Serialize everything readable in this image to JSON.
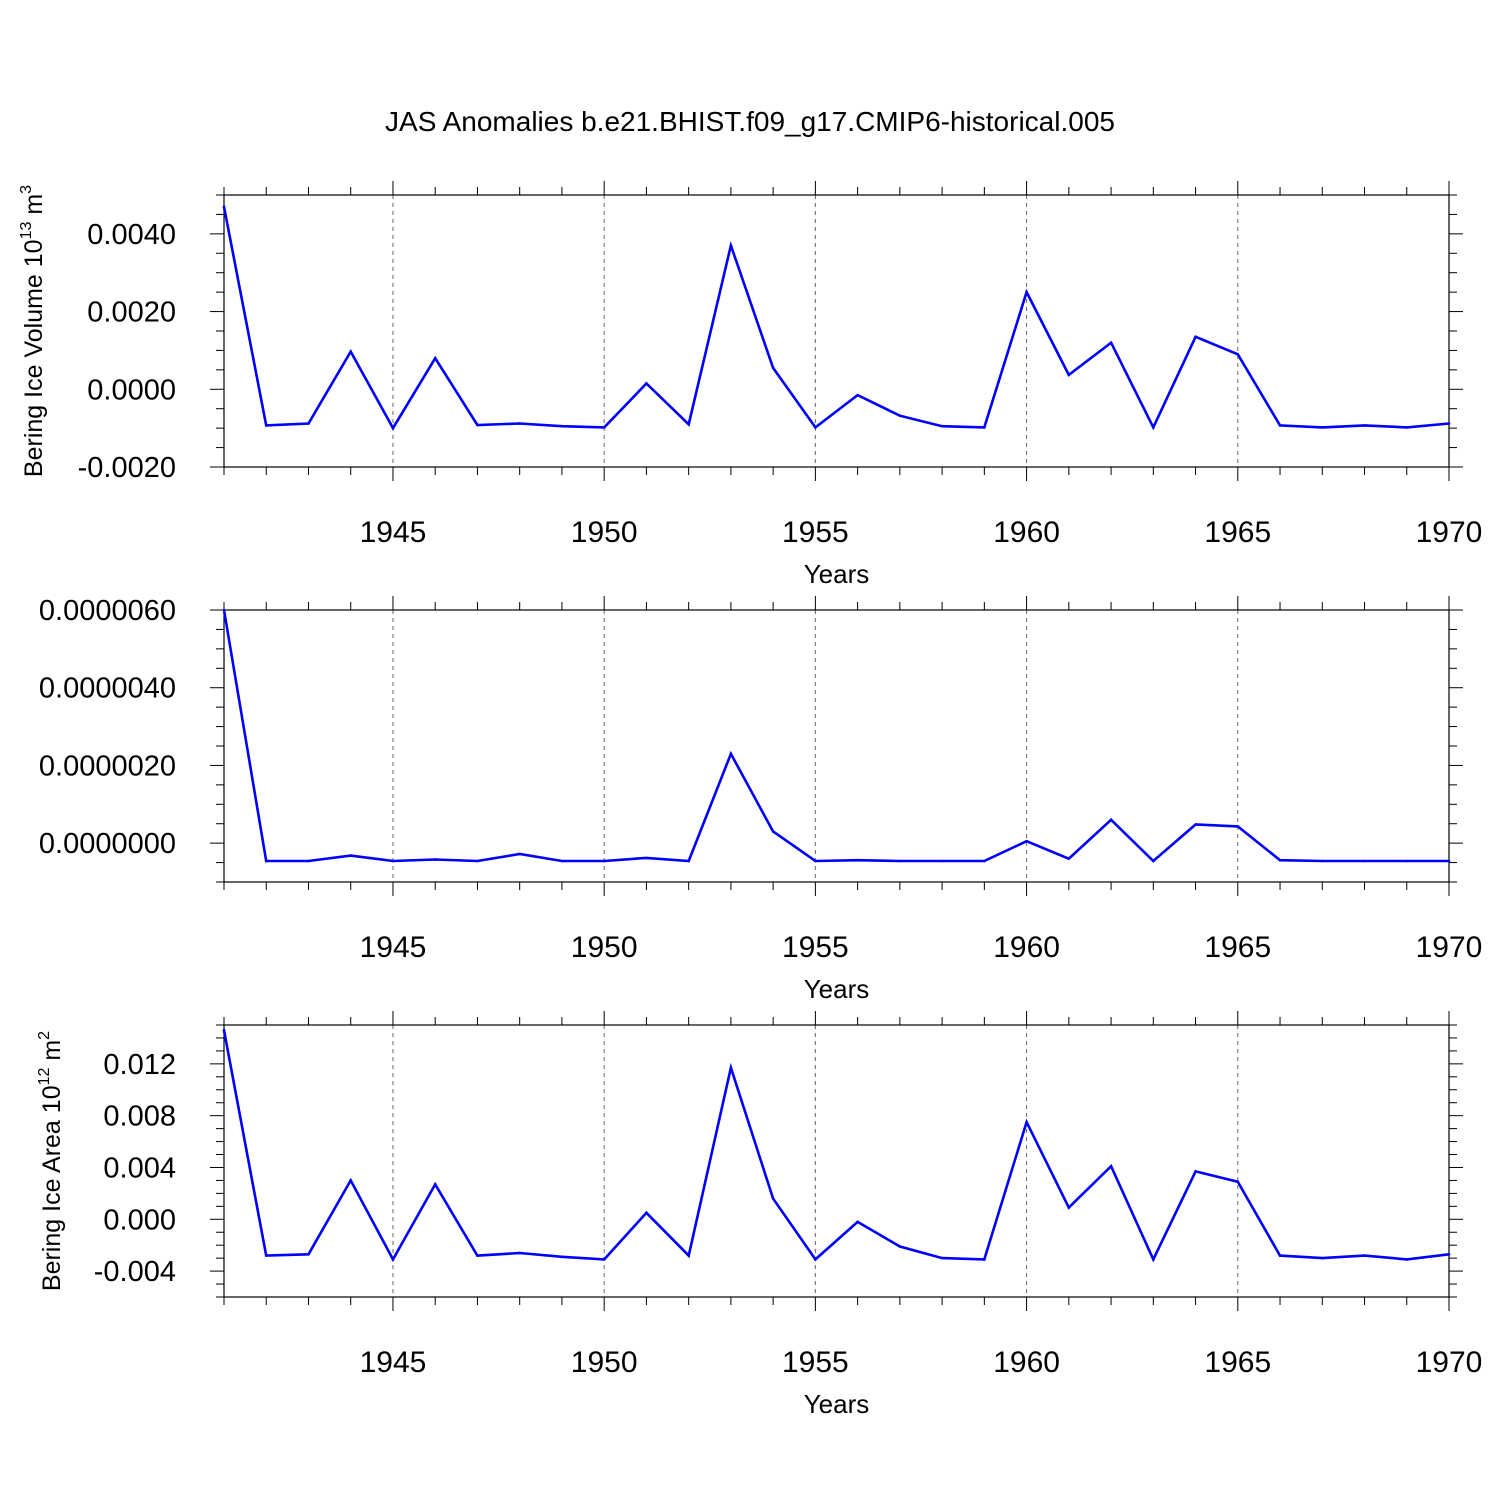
{
  "title": "JAS Anomalies b.e21.BHIST.f09_g17.CMIP6-historical.005",
  "line_color": "#0000ff",
  "chart_data": [
    {
      "type": "line",
      "xlabel": "Years",
      "ylabel_main": "Bering Ice Volume 10",
      "ylabel_exp": "13",
      "ylabel_unit": " m",
      "ylabel_unit_exp": "3",
      "xlim": [
        1941,
        1970
      ],
      "ylim": [
        -0.002,
        0.005
      ],
      "x_ticks": [
        "1945",
        "1950",
        "1955",
        "1960",
        "1965",
        "1970"
      ],
      "y_ticks": [
        "0.0040",
        "0.0020",
        "0.0000",
        "-0.0020"
      ],
      "y_tick_values": [
        0.004,
        0.002,
        0.0,
        -0.002
      ],
      "x": [
        1941,
        1942,
        1943,
        1944,
        1945,
        1946,
        1947,
        1948,
        1949,
        1950,
        1951,
        1952,
        1953,
        1954,
        1955,
        1956,
        1957,
        1958,
        1959,
        1960,
        1961,
        1962,
        1963,
        1964,
        1965,
        1966,
        1967,
        1968,
        1969,
        1970
      ],
      "y": [
        0.0047,
        -0.00093,
        -0.00088,
        0.00097,
        -0.001,
        0.0008,
        -0.00092,
        -0.00088,
        -0.00095,
        -0.00098,
        0.00015,
        -0.0009,
        0.0037,
        0.00055,
        -0.00098,
        -0.00015,
        -0.00068,
        -0.00095,
        -0.00098,
        0.0025,
        0.00037,
        0.0012,
        -0.00098,
        0.00135,
        0.0009,
        -0.00093,
        -0.00098,
        -0.00093,
        -0.00098,
        -0.00088
      ]
    },
    {
      "type": "line",
      "xlabel": "Years",
      "ylabel_main": "",
      "ylabel_exp": "",
      "ylabel_unit": "",
      "ylabel_unit_exp": "",
      "xlim": [
        1941,
        1970
      ],
      "ylim": [
        -1e-06,
        6e-06
      ],
      "x_ticks": [
        "1945",
        "1950",
        "1955",
        "1960",
        "1965",
        "1970"
      ],
      "y_ticks": [
        "0.0000060",
        "0.0000040",
        "0.0000020",
        "0.0000000"
      ],
      "y_tick_values": [
        6e-06,
        4e-06,
        2e-06,
        0.0
      ],
      "x": [
        1941,
        1942,
        1943,
        1944,
        1945,
        1946,
        1947,
        1948,
        1949,
        1950,
        1951,
        1952,
        1953,
        1954,
        1955,
        1956,
        1957,
        1958,
        1959,
        1960,
        1961,
        1962,
        1963,
        1964,
        1965,
        1966,
        1967,
        1968,
        1969,
        1970
      ],
      "y": [
        6e-06,
        -4.6e-07,
        -4.6e-07,
        -3.2e-07,
        -4.6e-07,
        -4.2e-07,
        -4.6e-07,
        -2.8e-07,
        -4.6e-07,
        -4.6e-07,
        -3.8e-07,
        -4.6e-07,
        2.3e-06,
        3e-07,
        -4.6e-07,
        -4.4e-07,
        -4.6e-07,
        -4.6e-07,
        -4.6e-07,
        5e-08,
        -4e-07,
        6e-07,
        -4.6e-07,
        4.8e-07,
        4.3e-07,
        -4.4e-07,
        -4.6e-07,
        -4.6e-07,
        -4.6e-07,
        -4.6e-07
      ]
    },
    {
      "type": "line",
      "xlabel": "Years",
      "ylabel_main": "Bering Ice Area 10",
      "ylabel_exp": "12",
      "ylabel_unit": " m",
      "ylabel_unit_exp": "2",
      "xlim": [
        1941,
        1970
      ],
      "ylim": [
        -0.006,
        0.015
      ],
      "x_ticks": [
        "1945",
        "1950",
        "1955",
        "1960",
        "1965",
        "1970"
      ],
      "y_ticks": [
        "0.012",
        "0.008",
        "0.004",
        "0.000",
        "-0.004"
      ],
      "y_tick_values": [
        0.012,
        0.008,
        0.004,
        0.0,
        -0.004
      ],
      "x": [
        1941,
        1942,
        1943,
        1944,
        1945,
        1946,
        1947,
        1948,
        1949,
        1950,
        1951,
        1952,
        1953,
        1954,
        1955,
        1956,
        1957,
        1958,
        1959,
        1960,
        1961,
        1962,
        1963,
        1964,
        1965,
        1966,
        1967,
        1968,
        1969,
        1970
      ],
      "y": [
        0.0146,
        -0.0028,
        -0.0027,
        0.003,
        -0.0031,
        0.0027,
        -0.0028,
        -0.0026,
        -0.0029,
        -0.0031,
        0.0005,
        -0.0028,
        0.0117,
        0.0016,
        -0.0031,
        -0.0002,
        -0.0021,
        -0.003,
        -0.0031,
        0.0075,
        0.0009,
        0.0041,
        -0.0031,
        0.0037,
        0.0029,
        -0.0028,
        -0.003,
        -0.0028,
        -0.0031,
        -0.0027
      ]
    }
  ]
}
